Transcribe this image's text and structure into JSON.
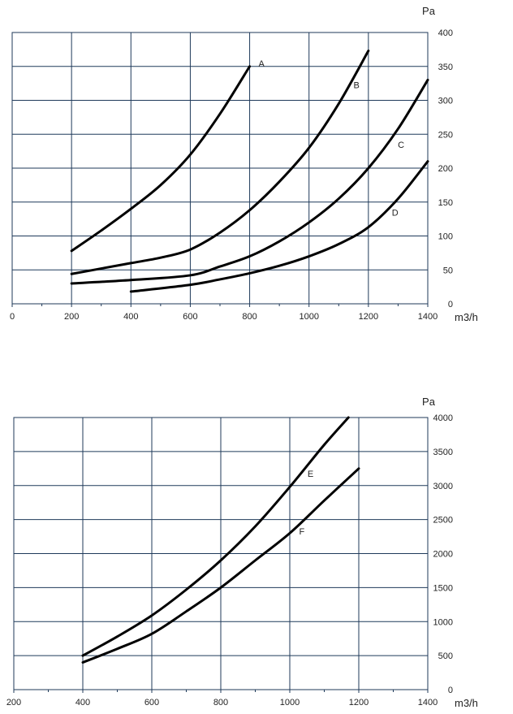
{
  "chart_data": [
    {
      "type": "line",
      "xlabel": "m3/h",
      "ylabel": "Pa",
      "xlim": [
        0,
        1400
      ],
      "ylim": [
        0,
        400
      ],
      "x_ticks": [
        0,
        200,
        400,
        600,
        800,
        1000,
        1200,
        1400
      ],
      "y_ticks": [
        0,
        50,
        100,
        150,
        200,
        250,
        300,
        350,
        400
      ],
      "x_tick_labels": [
        "0",
        "200",
        "400",
        "600",
        "800",
        "1000",
        "1200",
        "1400"
      ],
      "y_tick_labels": [
        "0",
        "50",
        "100",
        "150",
        "200",
        "250",
        "300",
        "350",
        "400"
      ],
      "grid": true,
      "series": [
        {
          "name": "A",
          "x": [
            200,
            300,
            400,
            500,
            600,
            700,
            800
          ],
          "y": [
            78,
            108,
            140,
            175,
            220,
            280,
            350
          ],
          "label_at": [
            840,
            350
          ]
        },
        {
          "name": "B",
          "x": [
            200,
            300,
            400,
            500,
            600,
            700,
            800,
            900,
            1000,
            1100,
            1200
          ],
          "y": [
            44,
            52,
            60,
            68,
            80,
            105,
            138,
            180,
            230,
            295,
            373
          ],
          "label_at": [
            1160,
            318
          ]
        },
        {
          "name": "C",
          "x": [
            200,
            400,
            600,
            700,
            800,
            900,
            1000,
            1100,
            1200,
            1300,
            1400
          ],
          "y": [
            30,
            35,
            42,
            55,
            70,
            92,
            120,
            155,
            200,
            258,
            330
          ],
          "label_at": [
            1310,
            230
          ]
        },
        {
          "name": "D",
          "x": [
            400,
            600,
            700,
            800,
            900,
            1000,
            1100,
            1200,
            1300,
            1400
          ],
          "y": [
            18,
            28,
            36,
            45,
            56,
            70,
            88,
            113,
            155,
            210
          ],
          "label_at": [
            1290,
            130
          ]
        }
      ]
    },
    {
      "type": "line",
      "xlabel": "m3/h",
      "ylabel": "Pa",
      "xlim": [
        200,
        1400
      ],
      "ylim": [
        0,
        4000
      ],
      "x_ticks": [
        200,
        400,
        600,
        800,
        1000,
        1200,
        1400
      ],
      "y_ticks": [
        0,
        500,
        1000,
        1500,
        2000,
        2500,
        3000,
        3500,
        4000
      ],
      "x_tick_labels": [
        "200",
        "400",
        "600",
        "800",
        "1000",
        "1200",
        "1400"
      ],
      "y_tick_labels": [
        "0",
        "500",
        "1000",
        "1500",
        "2000",
        "2500",
        "3000",
        "3500",
        "4000"
      ],
      "grid": true,
      "series": [
        {
          "name": "E",
          "x": [
            400,
            500,
            600,
            700,
            800,
            900,
            1000,
            1100,
            1170
          ],
          "y": [
            500,
            780,
            1090,
            1470,
            1900,
            2400,
            2980,
            3600,
            4000
          ],
          "label_at": [
            1060,
            3130
          ]
        },
        {
          "name": "F",
          "x": [
            400,
            500,
            600,
            700,
            800,
            900,
            1000,
            1100,
            1200
          ],
          "y": [
            400,
            600,
            820,
            1150,
            1500,
            1900,
            2300,
            2780,
            3250
          ],
          "label_at": [
            1035,
            2280
          ]
        }
      ]
    }
  ]
}
